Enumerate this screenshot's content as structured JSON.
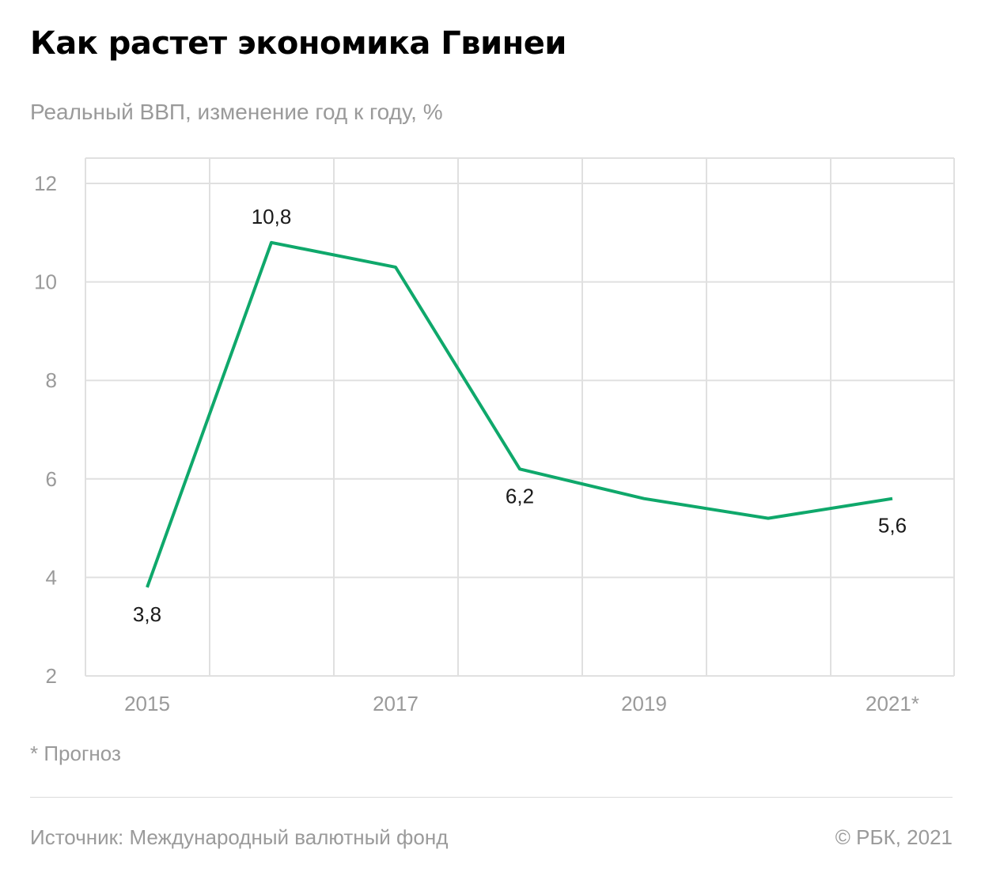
{
  "header": {
    "title": "Как растет экономика Гвинеи",
    "subtitle": "Реальный ВВП, изменение год к году, %"
  },
  "chart_data": {
    "type": "line",
    "x": [
      2015,
      2016,
      2017,
      2018,
      2019,
      2020,
      2021
    ],
    "x_tick_labels": [
      "2015",
      "",
      "2017",
      "",
      "2019",
      "",
      "2021*"
    ],
    "series": [
      {
        "values": [
          3.8,
          10.8,
          10.3,
          6.2,
          5.6,
          5.2,
          5.6
        ],
        "color": "#0fa86b"
      }
    ],
    "data_labels": [
      {
        "index": 0,
        "text": "3,8"
      },
      {
        "index": 1,
        "text": "10,8"
      },
      {
        "index": 3,
        "text": "6,2"
      },
      {
        "index": 6,
        "text": "5,6"
      }
    ],
    "y_ticks": [
      "2",
      "4",
      "6",
      "8",
      "10",
      "12"
    ],
    "ylim": [
      2,
      12
    ],
    "grid": true
  },
  "footer": {
    "footnote": "* Прогноз",
    "source": "Источник:  Международный валютный фонд",
    "credit": "©  РБК, 2021"
  },
  "colors": {
    "line": "#0fa86b",
    "grid": "#e0e0e0",
    "muted_text": "#9a9a9a"
  }
}
